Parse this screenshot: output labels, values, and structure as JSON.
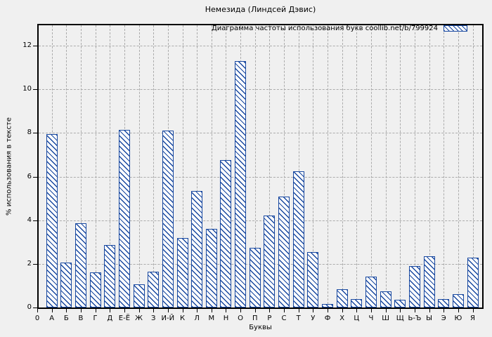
{
  "window": {
    "title": "Немезида (Линдсей Дэвис)"
  },
  "legend": {
    "label": "Диаграмма частоты использования букв coollib.net/b/799924"
  },
  "colors": {
    "accent_blue": "#17479f",
    "background": "#f0f0f0",
    "grid": "#ababab",
    "axis": "#000000",
    "bar_fill": "#ffffff"
  },
  "chart_data": {
    "type": "bar",
    "title": "Немезида (Линдсей Дэвис)",
    "xlabel": "Буквы",
    "ylabel": "% использования в тексте",
    "x_origin_label": "0",
    "ylim": [
      0,
      13
    ],
    "yticks": [
      0,
      2,
      4,
      6,
      8,
      10,
      12
    ],
    "grid": true,
    "legend_position": "top-right-inside",
    "bar_style": "blue diagonal hatch on white, blue border",
    "categories": [
      "А",
      "Б",
      "В",
      "Г",
      "Д",
      "Е-Ё",
      "Ж",
      "З",
      "И-Й",
      "К",
      "Л",
      "М",
      "Н",
      "О",
      "П",
      "Р",
      "С",
      "Т",
      "У",
      "Ф",
      "Х",
      "Ц",
      "Ч",
      "Ш",
      "Щ",
      "Ь-Ъ",
      "Ы",
      "Э",
      "Ю",
      "Я"
    ],
    "values": [
      7.95,
      2.05,
      3.85,
      1.6,
      2.85,
      8.15,
      1.05,
      1.65,
      8.1,
      3.2,
      5.35,
      3.6,
      6.75,
      11.3,
      2.75,
      4.2,
      5.1,
      6.25,
      2.55,
      0.15,
      0.85,
      0.4,
      1.4,
      0.75,
      0.35,
      1.9,
      2.35,
      0.4,
      0.6,
      2.3
    ]
  }
}
